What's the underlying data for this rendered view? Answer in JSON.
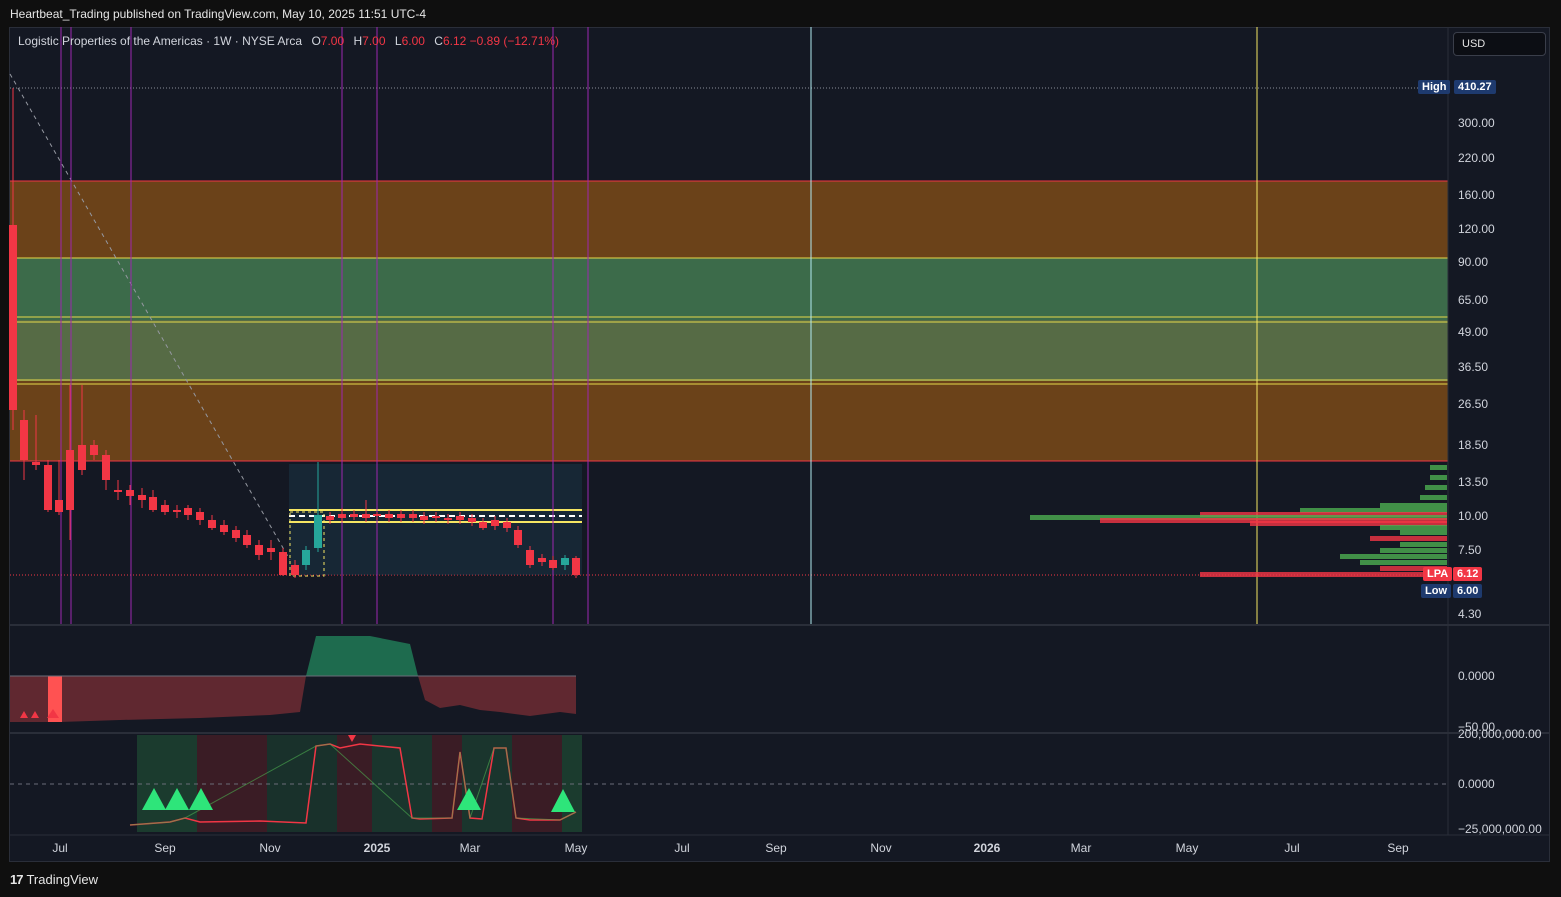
{
  "header": {
    "publisher_line": "Heartbeat_Trading published on TradingView.com, May 10, 2025 11:51 UTC-4"
  },
  "legend": {
    "symbol": "Logistic Properties of the Americas · 1W · NYSE Arca",
    "o_label": "O",
    "o_value": "7.00",
    "h_label": "H",
    "h_value": "7.00",
    "l_label": "L",
    "l_value": "6.00",
    "c_label": "C",
    "c_value": "6.12",
    "change": "−0.89 (−12.71%)"
  },
  "currency": "USD",
  "price_axis": {
    "ticks": [
      "300.00",
      "220.00",
      "160.00",
      "120.00",
      "90.00",
      "65.00",
      "49.00",
      "36.50",
      "26.50",
      "18.50",
      "13.50",
      "10.00",
      "7.50",
      "4.30"
    ],
    "high_label": "High",
    "high_value": "410.27",
    "symbol_tag": "LPA",
    "last_value": "6.12",
    "low_label": "Low",
    "low_value": "6.00"
  },
  "osc1_axis": {
    "ticks": [
      "0.0000",
      "−50.00"
    ]
  },
  "osc2_axis": {
    "ticks": [
      "200,000,000.00",
      "0.0000",
      "−25,000,000.00"
    ]
  },
  "time_axis": {
    "labels": [
      "Jul",
      "Sep",
      "Nov",
      "2025",
      "Mar",
      "May",
      "Jul",
      "Sep",
      "Nov",
      "2026",
      "Mar",
      "May",
      "Jul",
      "Sep"
    ]
  },
  "footer": {
    "brand": "TradingView",
    "logo_glyph": "17"
  },
  "colors": {
    "bull": "#26a69a",
    "bear": "#f23645",
    "orange_zone": "#6b4219",
    "green_zone": "#3c6b4a",
    "zone_line_red": "#f23645",
    "zone_line_yellow": "#e6d94a",
    "vline_purple": "#9c27b0",
    "vline_yellow": "#f5e663",
    "vline_cyan": "#b2ebf2"
  }
}
